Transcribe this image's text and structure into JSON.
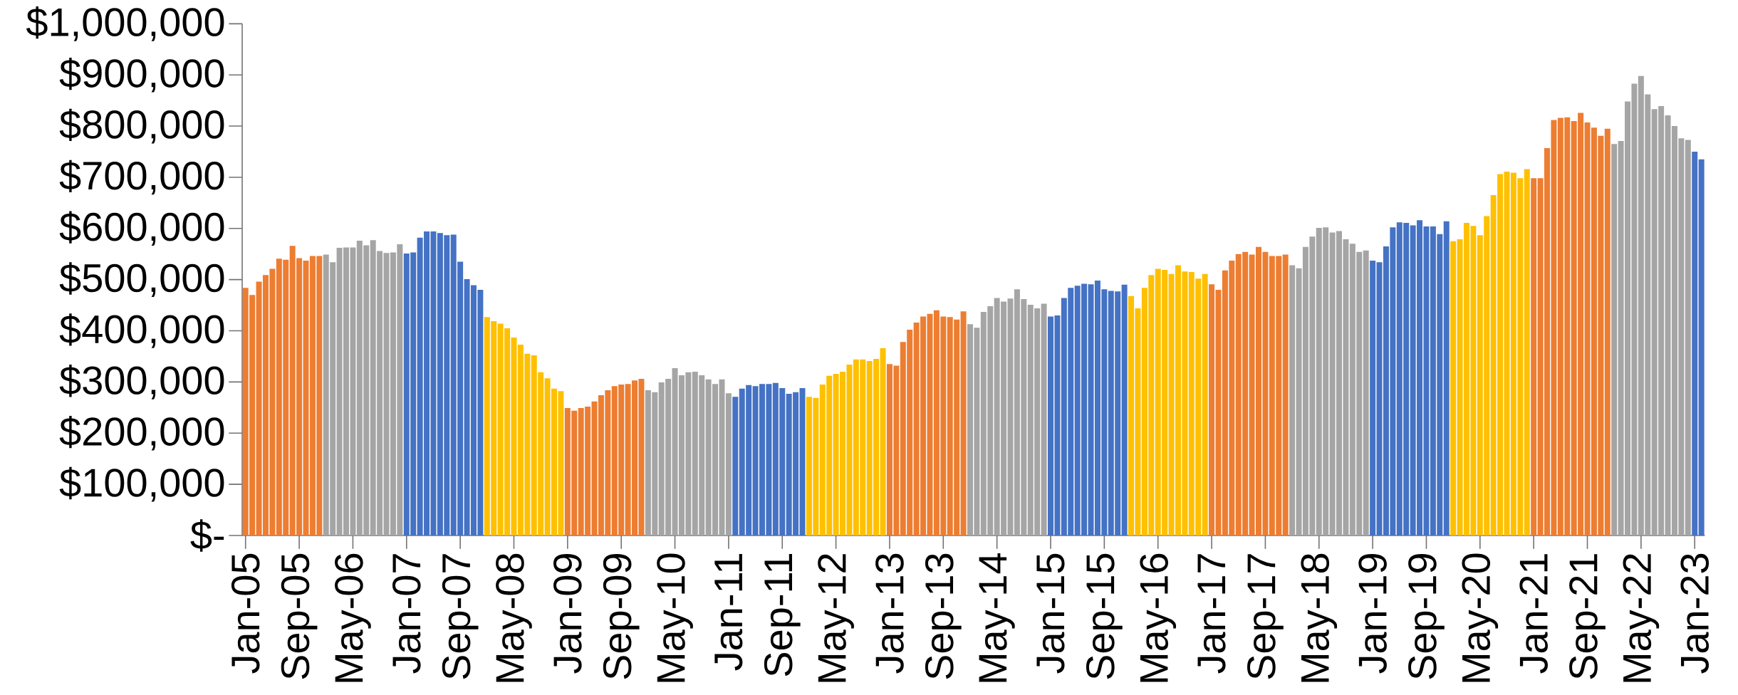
{
  "chart_data": {
    "type": "bar",
    "categories": [
      "Jan-05",
      null,
      null,
      null,
      null,
      null,
      null,
      null,
      "Sep-05",
      null,
      null,
      null,
      null,
      null,
      null,
      null,
      "May-06",
      null,
      null,
      null,
      null,
      null,
      null,
      null,
      "Jan-07",
      null,
      null,
      null,
      null,
      null,
      null,
      null,
      "Sep-07",
      null,
      null,
      null,
      null,
      null,
      null,
      null,
      "May-08",
      null,
      null,
      null,
      null,
      null,
      null,
      null,
      "Jan-09",
      null,
      null,
      null,
      null,
      null,
      null,
      null,
      "Sep-09",
      null,
      null,
      null,
      null,
      null,
      null,
      null,
      "May-10",
      null,
      null,
      null,
      null,
      null,
      null,
      null,
      "Jan-11",
      null,
      null,
      null,
      null,
      null,
      null,
      null,
      "Sep-11",
      null,
      null,
      null,
      null,
      null,
      null,
      null,
      "May-12",
      null,
      null,
      null,
      null,
      null,
      null,
      null,
      "Jan-13",
      null,
      null,
      null,
      null,
      null,
      null,
      null,
      "Sep-13",
      null,
      null,
      null,
      null,
      null,
      null,
      null,
      "May-14",
      null,
      null,
      null,
      null,
      null,
      null,
      null,
      "Jan-15",
      null,
      null,
      null,
      null,
      null,
      null,
      null,
      "Sep-15",
      null,
      null,
      null,
      null,
      null,
      null,
      null,
      "May-16",
      null,
      null,
      null,
      null,
      null,
      null,
      null,
      "Jan-17",
      null,
      null,
      null,
      null,
      null,
      null,
      null,
      "Sep-17",
      null,
      null,
      null,
      null,
      null,
      null,
      null,
      "May-18",
      null,
      null,
      null,
      null,
      null,
      null,
      null,
      "Jan-19",
      null,
      null,
      null,
      null,
      null,
      null,
      null,
      "Sep-19",
      null,
      null,
      null,
      null,
      null,
      null,
      null,
      "May-20",
      null,
      null,
      null,
      null,
      null,
      null,
      null,
      "Jan-21",
      null,
      null,
      null,
      null,
      null,
      null,
      null,
      "Sep-21",
      null,
      null,
      null,
      null,
      null,
      null,
      null,
      "May-22",
      null,
      null,
      null,
      null,
      null,
      null,
      null,
      "Jan-23",
      null
    ],
    "values": [
      484000,
      470000,
      496000,
      509000,
      521000,
      541000,
      539000,
      566000,
      542000,
      537000,
      546000,
      546000,
      549000,
      534000,
      562000,
      563000,
      563000,
      576000,
      567000,
      577000,
      556000,
      552000,
      553000,
      569000,
      551000,
      553000,
      582000,
      594000,
      594000,
      591000,
      587000,
      588000,
      535000,
      501000,
      489000,
      480000,
      427000,
      419000,
      414000,
      405000,
      387000,
      373000,
      355000,
      352000,
      319000,
      307000,
      287000,
      282000,
      249000,
      244000,
      249000,
      252000,
      262000,
      274000,
      284000,
      292000,
      295000,
      296000,
      303000,
      306000,
      284000,
      280000,
      299000,
      306000,
      327000,
      313000,
      319000,
      320000,
      313000,
      305000,
      296000,
      305000,
      278000,
      271000,
      287000,
      294000,
      292000,
      296000,
      296000,
      298000,
      288000,
      277000,
      280000,
      288000,
      271000,
      269000,
      295000,
      312000,
      316000,
      320000,
      334000,
      344000,
      344000,
      341000,
      345000,
      366000,
      335000,
      332000,
      378000,
      402000,
      416000,
      428000,
      433000,
      440000,
      428000,
      427000,
      422000,
      438000,
      413000,
      406000,
      437000,
      448000,
      464000,
      457000,
      463000,
      481000,
      462000,
      451000,
      444000,
      453000,
      428000,
      430000,
      464000,
      484000,
      488000,
      492000,
      491000,
      498000,
      481000,
      478000,
      477000,
      490000,
      468000,
      444000,
      484000,
      509000,
      521000,
      519000,
      511000,
      528000,
      516000,
      515000,
      502000,
      511000,
      491000,
      480000,
      518000,
      537000,
      550000,
      554000,
      549000,
      564000,
      554000,
      546000,
      546000,
      549000,
      528000,
      522000,
      564000,
      584000,
      601000,
      602000,
      592000,
      595000,
      579000,
      570000,
      554000,
      557000,
      537000,
      534000,
      565000,
      602000,
      612000,
      611000,
      606000,
      616000,
      604000,
      604000,
      589000,
      614000,
      575000,
      579000,
      611000,
      605000,
      587000,
      624000,
      665000,
      706000,
      711000,
      709000,
      698000,
      716000,
      698000,
      698000,
      757000,
      812000,
      816000,
      817000,
      810000,
      826000,
      807000,
      797000,
      781000,
      795000,
      765000,
      771000,
      848000,
      883000,
      898000,
      862000,
      833000,
      839000,
      821000,
      800000,
      776000,
      773000,
      750000,
      735000
    ],
    "colors": [
      "#ed7d31",
      "#ed7d31",
      "#ed7d31",
      "#ed7d31",
      "#ed7d31",
      "#ed7d31",
      "#ed7d31",
      "#ed7d31",
      "#ed7d31",
      "#ed7d31",
      "#ed7d31",
      "#ed7d31",
      "#a5a5a5",
      "#a5a5a5",
      "#a5a5a5",
      "#a5a5a5",
      "#a5a5a5",
      "#a5a5a5",
      "#a5a5a5",
      "#a5a5a5",
      "#a5a5a5",
      "#a5a5a5",
      "#a5a5a5",
      "#a5a5a5",
      "#4472c4",
      "#4472c4",
      "#4472c4",
      "#4472c4",
      "#4472c4",
      "#4472c4",
      "#4472c4",
      "#4472c4",
      "#4472c4",
      "#4472c4",
      "#4472c4",
      "#4472c4",
      "#ffc000",
      "#ffc000",
      "#ffc000",
      "#ffc000",
      "#ffc000",
      "#ffc000",
      "#ffc000",
      "#ffc000",
      "#ffc000",
      "#ffc000",
      "#ffc000",
      "#ffc000",
      "#ed7d31",
      "#ed7d31",
      "#ed7d31",
      "#ed7d31",
      "#ed7d31",
      "#ed7d31",
      "#ed7d31",
      "#ed7d31",
      "#ed7d31",
      "#ed7d31",
      "#ed7d31",
      "#ed7d31",
      "#a5a5a5",
      "#a5a5a5",
      "#a5a5a5",
      "#a5a5a5",
      "#a5a5a5",
      "#a5a5a5",
      "#a5a5a5",
      "#a5a5a5",
      "#a5a5a5",
      "#a5a5a5",
      "#a5a5a5",
      "#a5a5a5",
      "#a5a5a5",
      "#4472c4",
      "#4472c4",
      "#4472c4",
      "#4472c4",
      "#4472c4",
      "#4472c4",
      "#4472c4",
      "#4472c4",
      "#4472c4",
      "#4472c4",
      "#4472c4",
      "#ffc000",
      "#ffc000",
      "#ffc000",
      "#ffc000",
      "#ffc000",
      "#ffc000",
      "#ffc000",
      "#ffc000",
      "#ffc000",
      "#ffc000",
      "#ffc000",
      "#ffc000",
      "#ed7d31",
      "#ed7d31",
      "#ed7d31",
      "#ed7d31",
      "#ed7d31",
      "#ed7d31",
      "#ed7d31",
      "#ed7d31",
      "#ed7d31",
      "#ed7d31",
      "#ed7d31",
      "#ed7d31",
      "#a5a5a5",
      "#a5a5a5",
      "#a5a5a5",
      "#a5a5a5",
      "#a5a5a5",
      "#a5a5a5",
      "#a5a5a5",
      "#a5a5a5",
      "#a5a5a5",
      "#a5a5a5",
      "#a5a5a5",
      "#a5a5a5",
      "#4472c4",
      "#4472c4",
      "#4472c4",
      "#4472c4",
      "#4472c4",
      "#4472c4",
      "#4472c4",
      "#4472c4",
      "#4472c4",
      "#4472c4",
      "#4472c4",
      "#4472c4",
      "#ffc000",
      "#ffc000",
      "#ffc000",
      "#ffc000",
      "#ffc000",
      "#ffc000",
      "#ffc000",
      "#ffc000",
      "#ffc000",
      "#ffc000",
      "#ffc000",
      "#ffc000",
      "#ed7d31",
      "#ed7d31",
      "#ed7d31",
      "#ed7d31",
      "#ed7d31",
      "#ed7d31",
      "#ed7d31",
      "#ed7d31",
      "#ed7d31",
      "#ed7d31",
      "#ed7d31",
      "#ed7d31",
      "#a5a5a5",
      "#a5a5a5",
      "#a5a5a5",
      "#a5a5a5",
      "#a5a5a5",
      "#a5a5a5",
      "#a5a5a5",
      "#a5a5a5",
      "#a5a5a5",
      "#a5a5a5",
      "#a5a5a5",
      "#a5a5a5",
      "#4472c4",
      "#4472c4",
      "#4472c4",
      "#4472c4",
      "#4472c4",
      "#4472c4",
      "#4472c4",
      "#4472c4",
      "#4472c4",
      "#4472c4",
      "#4472c4",
      "#4472c4",
      "#ffc000",
      "#ffc000",
      "#ffc000",
      "#ffc000",
      "#ffc000",
      "#ffc000",
      "#ffc000",
      "#ffc000",
      "#ffc000",
      "#ffc000",
      "#ffc000",
      "#ffc000",
      "#ed7d31",
      "#ed7d31",
      "#ed7d31",
      "#ed7d31",
      "#ed7d31",
      "#ed7d31",
      "#ed7d31",
      "#ed7d31",
      "#ed7d31",
      "#ed7d31",
      "#ed7d31",
      "#ed7d31",
      "#a5a5a5",
      "#a5a5a5",
      "#a5a5a5",
      "#a5a5a5",
      "#a5a5a5",
      "#a5a5a5",
      "#a5a5a5",
      "#a5a5a5",
      "#a5a5a5",
      "#a5a5a5",
      "#a5a5a5",
      "#a5a5a5",
      "#4472c4",
      "#4472c4"
    ],
    "ylim": [
      0,
      1000000
    ],
    "yticks": [
      {
        "value": 0,
        "label": "$-"
      },
      {
        "value": 100000,
        "label": "$100,000"
      },
      {
        "value": 200000,
        "label": "$200,000"
      },
      {
        "value": 300000,
        "label": "$300,000"
      },
      {
        "value": 400000,
        "label": "$400,000"
      },
      {
        "value": 500000,
        "label": "$500,000"
      },
      {
        "value": 600000,
        "label": "$600,000"
      },
      {
        "value": 700000,
        "label": "$700,000"
      },
      {
        "value": 800000,
        "label": "$800,000"
      },
      {
        "value": 900000,
        "label": "$900,000"
      },
      {
        "value": 1000000,
        "label": "$1,000,000"
      }
    ]
  }
}
